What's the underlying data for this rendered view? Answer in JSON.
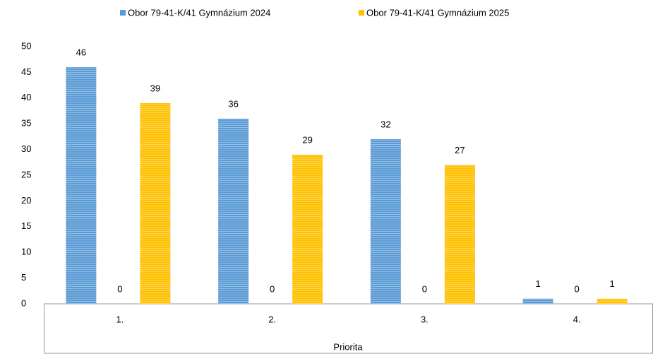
{
  "chart_data": {
    "type": "bar",
    "categories": [
      "1.",
      "2.",
      "3.",
      "4."
    ],
    "x_label": "Priorita",
    "series": [
      {
        "name": "Obor 79-41-K/41 Gymnázium 2024",
        "color": "#5b9bd5",
        "values": [
          46,
          36,
          32,
          1
        ]
      },
      {
        "values": [
          0,
          0,
          0,
          0
        ]
      },
      {
        "name": "Obor 79-41-K/41 Gymnázium 2025",
        "color": "#ffc000",
        "values": [
          39,
          29,
          27,
          1
        ]
      }
    ],
    "ylim": [
      0,
      50
    ],
    "yticks": [
      0,
      5,
      10,
      15,
      20,
      25,
      30,
      35,
      40,
      45,
      50
    ],
    "grid": false,
    "legend": "top"
  }
}
